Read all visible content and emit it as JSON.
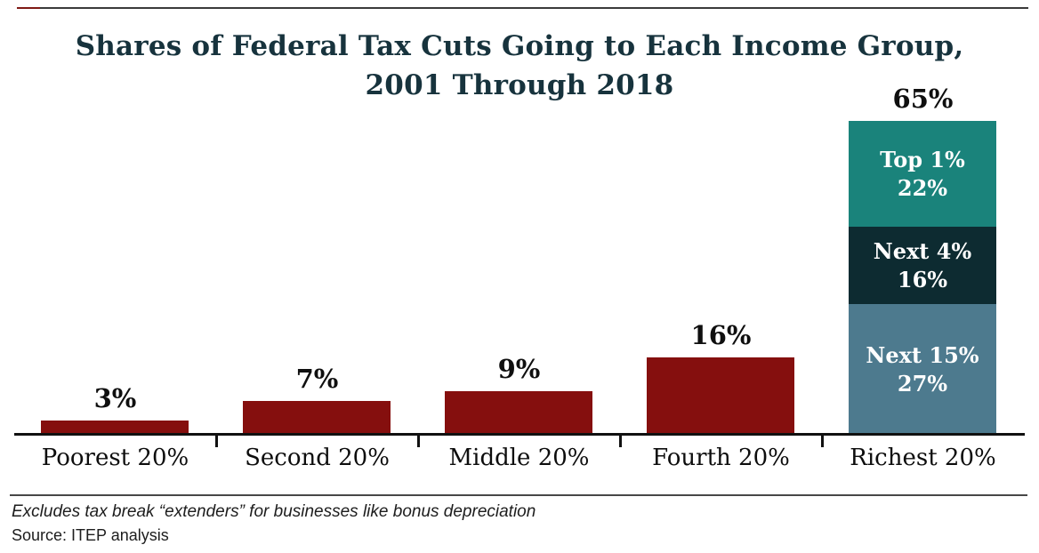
{
  "page": {
    "title_line1": "Shares of Federal Tax Cuts Going to Each Income Group,",
    "title_line2": "2001 Through 2018",
    "note": "Excludes tax break “extenders” for businesses like bonus depreciation",
    "source": "Source: ITEP analysis"
  },
  "chart_data": {
    "type": "bar",
    "title": "Shares of Federal Tax Cuts Going to Each Income Group, 2001 Through 2018",
    "categories": [
      "Poorest 20%",
      "Second 20%",
      "Middle 20%",
      "Fourth 20%",
      "Richest 20%"
    ],
    "values": [
      3,
      7,
      9,
      16,
      65
    ],
    "value_labels": [
      "3%",
      "7%",
      "9%",
      "16%",
      "65%"
    ],
    "bar_color": "#850f0e",
    "stacked_category": "Richest 20%",
    "stacked_segments": [
      {
        "label": "Top 1%",
        "pct_label": "22%",
        "value": 22,
        "color": "#1a837b",
        "text_color": "#ffffff"
      },
      {
        "label": "Next 4%",
        "pct_label": "16%",
        "value": 16,
        "color": "#0d2b31",
        "text_color": "#ffffff"
      },
      {
        "label": "Next 15%",
        "pct_label": "27%",
        "value": 27,
        "color": "#4d7a8e",
        "text_color": "#ffffff"
      }
    ],
    "ylim": [
      0,
      70
    ],
    "grid": false,
    "legend": "none",
    "y_axis_shown": false,
    "axis_color": "#111111"
  },
  "style_colors": {
    "title_text": "#17333d",
    "top_rule": "#3b3b3b",
    "top_rule_accent": "#7f1a15",
    "footer_rule": "#474747",
    "value_text": "#0f0f0f"
  }
}
